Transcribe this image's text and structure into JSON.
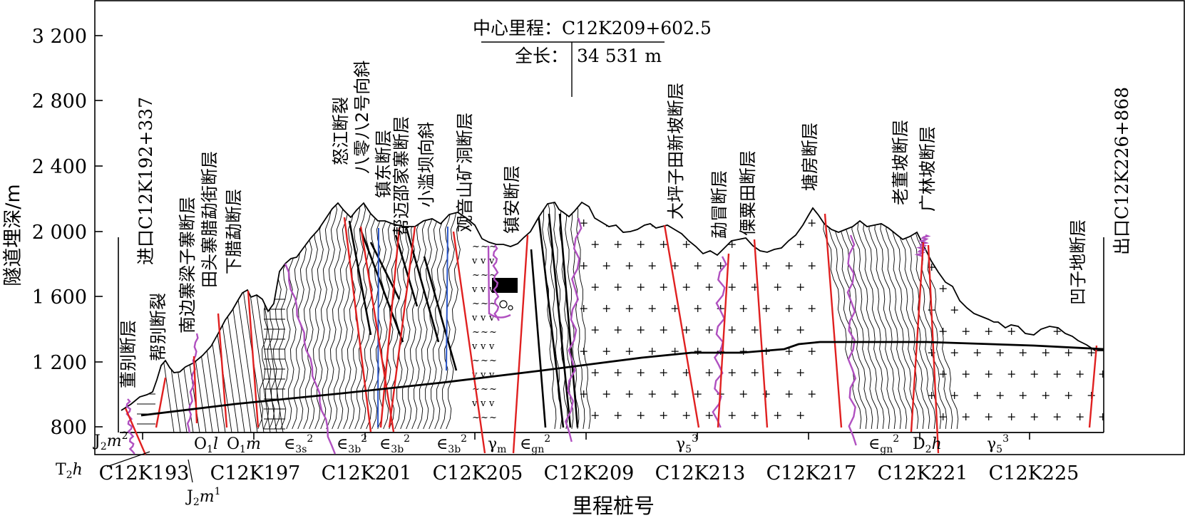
{
  "figure": {
    "y_axis_label": "隧道埋深/m",
    "x_axis_label": "里程桩号",
    "y_ticks": [
      "3 200",
      "2 800",
      "2 400",
      "2 000",
      "1 600",
      "1 200",
      "800"
    ],
    "x_ticks": [
      "C12K193",
      "C12K197",
      "C12K201",
      "C12K205",
      "C12K209",
      "C12K213",
      "C12K217",
      "C12K221",
      "C12K225"
    ],
    "center_mileage": "中心里程：C12K209+602.5",
    "total_length_label": "全长：",
    "total_length_value": "34 531 m",
    "entrance_label": "进口C12K192+337",
    "exit_label": "出口C12K226+868",
    "colors": {
      "fault": "#e02020",
      "contact": "#b050c0",
      "blue_line": "#2a56c8",
      "line": "#000000"
    }
  },
  "faults": [
    {
      "name": "董别断层"
    },
    {
      "name": "帮别断裂"
    },
    {
      "name": "南边寨梁子寨断层"
    },
    {
      "name": "田头寨腊勐街断层"
    },
    {
      "name": "下腊勐断层"
    },
    {
      "name": "怒江断裂"
    },
    {
      "name": "八零八2号向斜"
    },
    {
      "name": "镇东断层"
    },
    {
      "name": "帮迈邵家寨断层"
    },
    {
      "name": "小滥坝向斜"
    },
    {
      "name": "观音山矿洞断层"
    },
    {
      "name": "镇安断层"
    },
    {
      "name": "大坪子田新坡断层"
    },
    {
      "name": "勐冒断层"
    },
    {
      "name": "傈粟田断层"
    },
    {
      "name": "塘房断层"
    },
    {
      "name": "老董坡断层"
    },
    {
      "name": "广林坡断层"
    },
    {
      "name": "凹子地断层"
    }
  ],
  "strata": {
    "j2m2": {
      "base": "J",
      "sub": "2",
      "sym": "m",
      "sup": "2"
    },
    "o1l": {
      "base": "O",
      "sub": "1",
      "sym": "l",
      "sup": ""
    },
    "o1m": {
      "base": "O",
      "sub": "1",
      "sym": "m",
      "sup": ""
    },
    "e3s2": {
      "base": "∈",
      "sub": "3s",
      "sym": "",
      "sup": "2"
    },
    "e3b2a": {
      "base": "∈",
      "sub": "3b",
      "sym": "",
      "sup": "2"
    },
    "e3b2b": {
      "base": "∈",
      "sub": "3b",
      "sym": "",
      "sup": "2"
    },
    "e3b2c": {
      "base": "∈",
      "sub": "3b",
      "sym": "",
      "sup": "2"
    },
    "gm": {
      "base": "γ",
      "sub": "m",
      "sym": "",
      "sup": ""
    },
    "egn2a": {
      "base": "∈",
      "sub": "gn",
      "sym": "",
      "sup": "2"
    },
    "g53a": {
      "base": "γ",
      "sub": "5",
      "sym": "",
      "sup": "3"
    },
    "egn2b": {
      "base": "∈",
      "sub": "gn",
      "sym": "",
      "sup": "2"
    },
    "d2h": {
      "base": "D",
      "sub": "2",
      "sym": "h",
      "sup": ""
    },
    "g53b": {
      "base": "γ",
      "sub": "5",
      "sym": "",
      "sup": "3"
    },
    "t2h": {
      "base": "T",
      "sub": "2",
      "sym": "h",
      "sup": ""
    },
    "j2m1": {
      "base": "J",
      "sub": "2",
      "sym": "m",
      "sup": "1"
    }
  }
}
